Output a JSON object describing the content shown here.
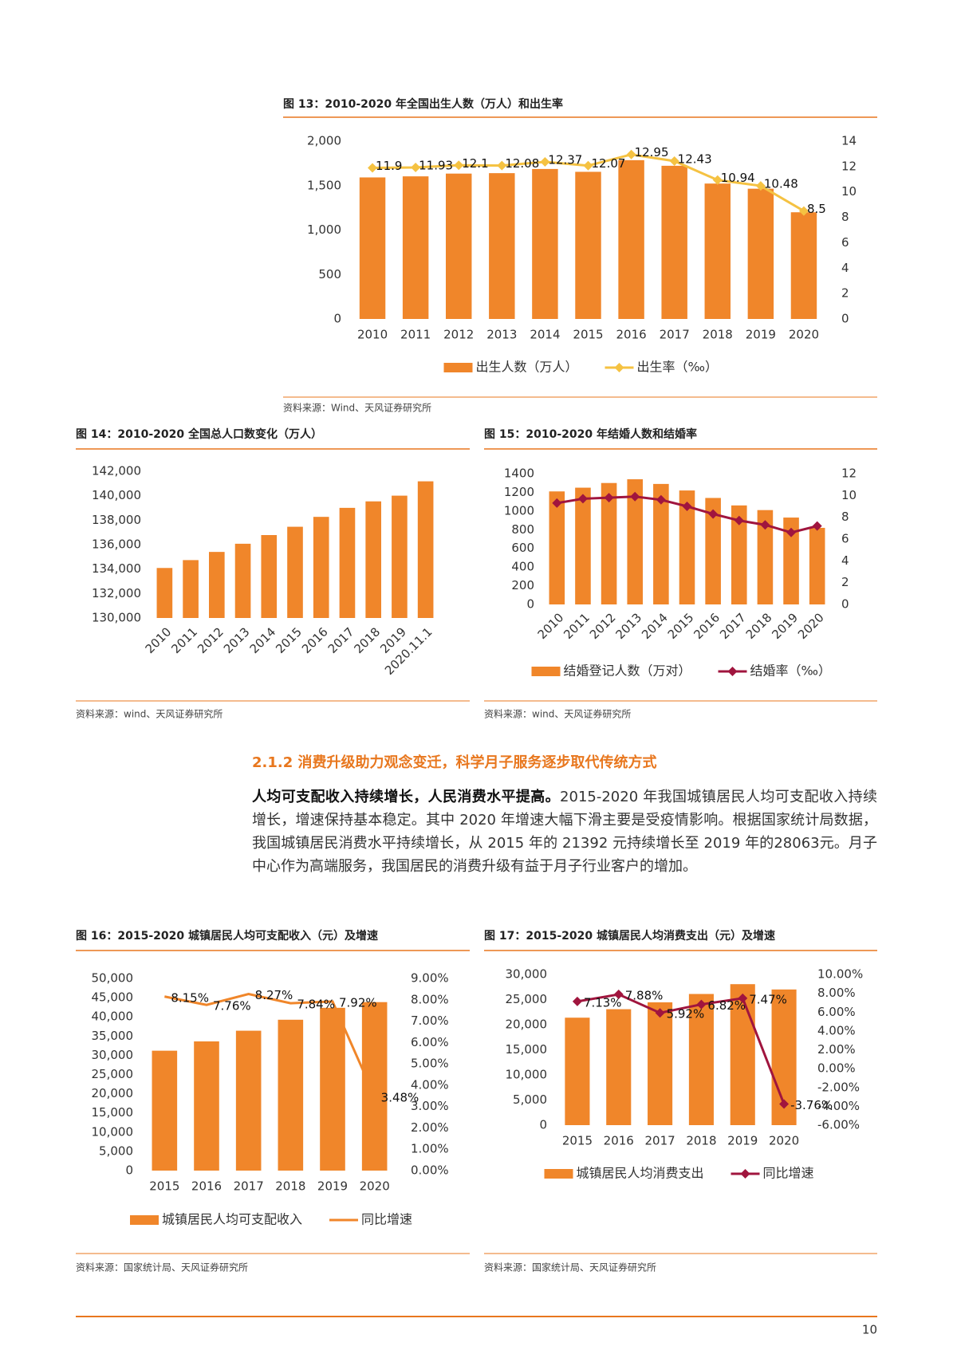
{
  "chart_data": [
    {
      "type": "combo",
      "title": "图 13：2010-2020 年全国出生人数（万人）和出生率",
      "source": "资料来源：Wind、天风证券研究所",
      "categories": [
        "2010",
        "2011",
        "2012",
        "2013",
        "2014",
        "2015",
        "2016",
        "2017",
        "2018",
        "2019",
        "2020"
      ],
      "series": [
        {
          "name": "出生人数（万人）",
          "type": "bar",
          "axis": "y",
          "color": "#f0862a",
          "values": [
            1592,
            1604,
            1635,
            1640,
            1687,
            1655,
            1786,
            1723,
            1523,
            1465,
            1200
          ]
        },
        {
          "name": "出生率（‰）",
          "type": "line",
          "axis": "y2",
          "color": "#f5c242",
          "marker": "diamond",
          "data_labels": true,
          "values": [
            11.9,
            11.93,
            12.1,
            12.08,
            12.37,
            12.07,
            12.95,
            12.43,
            10.94,
            10.48,
            8.5
          ]
        }
      ],
      "ylim": [
        0,
        2000
      ],
      "yticks": [
        0,
        500,
        {
          "value": 1000,
          "label": "1,000"
        },
        {
          "value": 1500,
          "label": "1,500"
        },
        {
          "value": 2000,
          "label": "2,000"
        }
      ],
      "y2lim": [
        0,
        14
      ],
      "y2ticks": [
        0,
        2,
        4,
        6,
        8,
        10,
        12,
        14
      ],
      "legend": "bottom"
    },
    {
      "type": "bar",
      "title": "图 14：2010-2020 全国总人口数变化（万人）",
      "source": "资料来源：wind、天风证券研究所",
      "categories": [
        "2010",
        "2011",
        "2012",
        "2013",
        "2014",
        "2015",
        "2016",
        "2017",
        "2018",
        "2019",
        "2020.11.1"
      ],
      "values": [
        134091,
        134735,
        135404,
        136072,
        136782,
        137462,
        138271,
        139008,
        139538,
        140005,
        141178
      ],
      "color": "#f0862a",
      "ylim": [
        130000,
        142000
      ],
      "yticks": [
        {
          "value": 130000,
          "label": "130,000"
        },
        {
          "value": 132000,
          "label": "132,000"
        },
        {
          "value": 134000,
          "label": "134,000"
        },
        {
          "value": 136000,
          "label": "136,000"
        },
        {
          "value": 138000,
          "label": "138,000"
        },
        {
          "value": 140000,
          "label": "140,000"
        },
        {
          "value": 142000,
          "label": "142,000"
        }
      ]
    },
    {
      "type": "combo",
      "title": "图 15：2010-2020 年结婚人数和结婚率",
      "source": "资料来源：wind、天风证券研究所",
      "categories": [
        "2010",
        "2011",
        "2012",
        "2013",
        "2014",
        "2015",
        "2016",
        "2017",
        "2018",
        "2019",
        "2020"
      ],
      "series": [
        {
          "name": "结婚登记人数（万对）",
          "type": "bar",
          "axis": "y",
          "color": "#f0862a",
          "values": [
            1210,
            1250,
            1300,
            1340,
            1290,
            1220,
            1140,
            1060,
            1010,
            930,
            820
          ]
        },
        {
          "name": "结婚率（‰）",
          "type": "line",
          "axis": "y2",
          "color": "#a0153e",
          "marker": "diamond",
          "values": [
            9.3,
            9.7,
            9.8,
            9.9,
            9.6,
            9.0,
            8.3,
            7.7,
            7.3,
            6.6,
            7.2
          ]
        }
      ],
      "ylim": [
        0,
        1400
      ],
      "yticks": [
        0,
        200,
        400,
        600,
        800,
        1000,
        1200,
        1400
      ],
      "y2lim": [
        0,
        12
      ],
      "y2ticks": [
        0,
        2,
        4,
        6,
        8,
        10,
        12
      ],
      "legend": "bottom"
    },
    {
      "type": "combo",
      "title": "图 16：2015-2020 城镇居民人均可支配收入（元）及增速",
      "source": "资料来源：国家统计局、天风证券研究所",
      "categories": [
        "2015",
        "2016",
        "2017",
        "2018",
        "2019",
        "2020"
      ],
      "series": [
        {
          "name": "城镇居民人均可支配收入",
          "type": "bar",
          "axis": "y",
          "color": "#f0862a",
          "values": [
            31195,
            33616,
            36396,
            39251,
            42359,
            43834
          ]
        },
        {
          "name": "同比增速",
          "type": "line",
          "axis": "y2",
          "color": "#f0862a",
          "values": [
            8.15,
            7.76,
            8.27,
            7.84,
            7.92,
            3.48
          ],
          "value_labels": [
            "8.15%",
            "7.76%",
            "8.27%",
            "7.84%",
            "7.92%",
            "3.48%"
          ]
        }
      ],
      "ylim": [
        0,
        50000
      ],
      "yticks": [
        0,
        {
          "value": 5000,
          "label": "5,000"
        },
        {
          "value": 10000,
          "label": "10,000"
        },
        {
          "value": 15000,
          "label": "15,000"
        },
        {
          "value": 20000,
          "label": "20,000"
        },
        {
          "value": 25000,
          "label": "25,000"
        },
        {
          "value": 30000,
          "label": "30,000"
        },
        {
          "value": 35000,
          "label": "35,000"
        },
        {
          "value": 40000,
          "label": "40,000"
        },
        {
          "value": 45000,
          "label": "45,000"
        },
        {
          "value": 50000,
          "label": "50,000"
        }
      ],
      "y2lim": [
        0,
        9
      ],
      "y2ticks": [
        {
          "value": 0,
          "label": "0.00%"
        },
        {
          "value": 1,
          "label": "1.00%"
        },
        {
          "value": 2,
          "label": "2.00%"
        },
        {
          "value": 3,
          "label": "3.00%"
        },
        {
          "value": 4,
          "label": "4.00%"
        },
        {
          "value": 5,
          "label": "5.00%"
        },
        {
          "value": 6,
          "label": "6.00%"
        },
        {
          "value": 7,
          "label": "7.00%"
        },
        {
          "value": 8,
          "label": "8.00%"
        },
        {
          "value": 9,
          "label": "9.00%"
        }
      ],
      "legend": "bottom"
    },
    {
      "type": "combo",
      "title": "图 17：2015-2020 城镇居民人均消费支出（元）及增速",
      "source": "资料来源：国家统计局、天风证券研究所",
      "categories": [
        "2015",
        "2016",
        "2017",
        "2018",
        "2019",
        "2020"
      ],
      "series": [
        {
          "name": "城镇居民人均消费支出",
          "type": "bar",
          "axis": "y",
          "color": "#f0862a",
          "values": [
            21392,
            23079,
            24445,
            26112,
            28063,
            27007
          ]
        },
        {
          "name": "同比增速",
          "type": "line",
          "axis": "y2",
          "color": "#a0153e",
          "marker": "diamond",
          "values": [
            7.13,
            7.88,
            5.92,
            6.82,
            7.47,
            -3.76
          ],
          "value_labels": [
            "7.13%",
            "7.88%",
            "5.92%",
            "6.82%",
            "7.47%",
            "-3.76%"
          ]
        }
      ],
      "ylim": [
        0,
        30000
      ],
      "yticks": [
        0,
        {
          "value": 5000,
          "label": "5,000"
        },
        {
          "value": 10000,
          "label": "10,000"
        },
        {
          "value": 15000,
          "label": "15,000"
        },
        {
          "value": 20000,
          "label": "20,000"
        },
        {
          "value": 25000,
          "label": "25,000"
        },
        {
          "value": 30000,
          "label": "30,000"
        }
      ],
      "y2lim": [
        -6,
        10
      ],
      "y2ticks": [
        {
          "value": -6,
          "label": "-6.00%"
        },
        {
          "value": -4,
          "label": "-4.00%"
        },
        {
          "value": -2,
          "label": "-2.00%"
        },
        {
          "value": 0,
          "label": "0.00%"
        },
        {
          "value": 2,
          "label": "2.00%"
        },
        {
          "value": 4,
          "label": "4.00%"
        },
        {
          "value": 6,
          "label": "6.00%"
        },
        {
          "value": 8,
          "label": "8.00%"
        },
        {
          "value": 10,
          "label": "10.00%"
        }
      ],
      "legend": "bottom"
    }
  ],
  "section": {
    "heading": "2.1.2 消费升级助力观念变迁，科学月子服务逐步取代传统方式",
    "lead": "人均可支配收入持续增长，人民消费水平提高。",
    "body": "2015-2020 年我国城镇居民人均可支配收入持续增长，增速保持基本稳定。其中 2020 年增速大幅下滑主要是受疫情影响。根据国家统计局数据，我国城镇居民消费水平持续增长，从 2015 年的 21392 元持续增长至 2019 年的28063元。月子中心作为高端服务，我国居民的消费升级有益于月子行业客户的增加。"
  },
  "page_number": "10"
}
